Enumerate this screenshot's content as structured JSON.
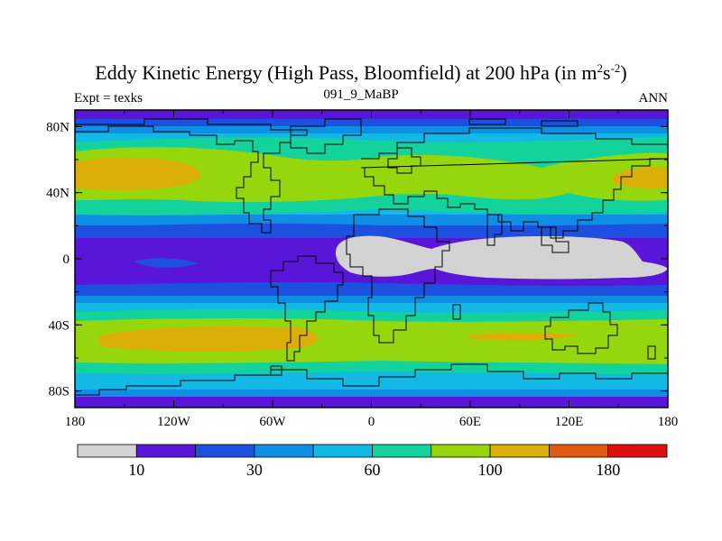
{
  "title": {
    "prefix": "Eddy Kinetic Energy (High Pass, Bloomfield) at 200 hPa (in m",
    "sup1": "2",
    "mid": "s",
    "sup2": "-2",
    "suffix": ")"
  },
  "left_label": "Expt = texks",
  "center_label": "091_9_MaBP",
  "right_label": "ANN",
  "lat_ticks": [
    {
      "label": "80N",
      "lat": 80
    },
    {
      "label": "40N",
      "lat": 40
    },
    {
      "label": "0",
      "lat": 0
    },
    {
      "label": "40S",
      "lat": -40
    },
    {
      "label": "80S",
      "lat": -80
    }
  ],
  "lon_ticks": [
    {
      "label": "180",
      "lon": -180
    },
    {
      "label": "120W",
      "lon": -120
    },
    {
      "label": "60W",
      "lon": -60
    },
    {
      "label": "0",
      "lon": 0
    },
    {
      "label": "60E",
      "lon": 60
    },
    {
      "label": "120E",
      "lon": 120
    },
    {
      "label": "180",
      "lon": 180
    }
  ],
  "colorbar": {
    "colors": [
      "#d3d3d3",
      "#5a16d8",
      "#1e50e0",
      "#0f8ee6",
      "#11b9e4",
      "#13d29b",
      "#96d60d",
      "#dbaf08",
      "#e05a12",
      "#e00e0e"
    ],
    "labels": [
      {
        "text": "10",
        "index": 1
      },
      {
        "text": "30",
        "index": 3
      },
      {
        "text": "60",
        "index": 5
      },
      {
        "text": "100",
        "index": 7
      },
      {
        "text": "180",
        "index": 9
      }
    ]
  },
  "chart_data": {
    "type": "heatmap",
    "title": "Eddy Kinetic Energy (High Pass, Bloomfield) at 200 hPa (in m2s-2)",
    "experiment": "texks",
    "subtitle": "091_9_MaBP",
    "season": "ANN",
    "x_range": [
      -180,
      180
    ],
    "y_range": [
      -90,
      90
    ],
    "units": "m2 s-2",
    "contour_levels": [
      5,
      10,
      20,
      30,
      45,
      60,
      80,
      100,
      140,
      180
    ],
    "approx_zonal_band_levels": [
      {
        "lat": 90,
        "level": 2
      },
      {
        "lat": 78,
        "level": 3
      },
      {
        "lat": 70,
        "level": 4
      },
      {
        "lat": 62,
        "level": 5
      },
      {
        "lat": 54,
        "level": 6
      },
      {
        "lat": 46,
        "level": 7
      },
      {
        "lat": 36,
        "level": 6
      },
      {
        "lat": 28,
        "level": 5
      },
      {
        "lat": 20,
        "level": 3
      },
      {
        "lat": 10,
        "level": 1
      },
      {
        "lat": 0,
        "level": 1
      },
      {
        "lat": -10,
        "level": 1
      },
      {
        "lat": -20,
        "level": 3
      },
      {
        "lat": -28,
        "level": 4
      },
      {
        "lat": -35,
        "level": 5
      },
      {
        "lat": -41,
        "level": 6
      },
      {
        "lat": -48,
        "level": 7
      },
      {
        "lat": -56,
        "level": 6
      },
      {
        "lat": -63,
        "level": 5
      },
      {
        "lat": -70,
        "level": 4
      },
      {
        "lat": -78,
        "level": 3
      },
      {
        "lat": -90,
        "level": 2
      }
    ]
  }
}
